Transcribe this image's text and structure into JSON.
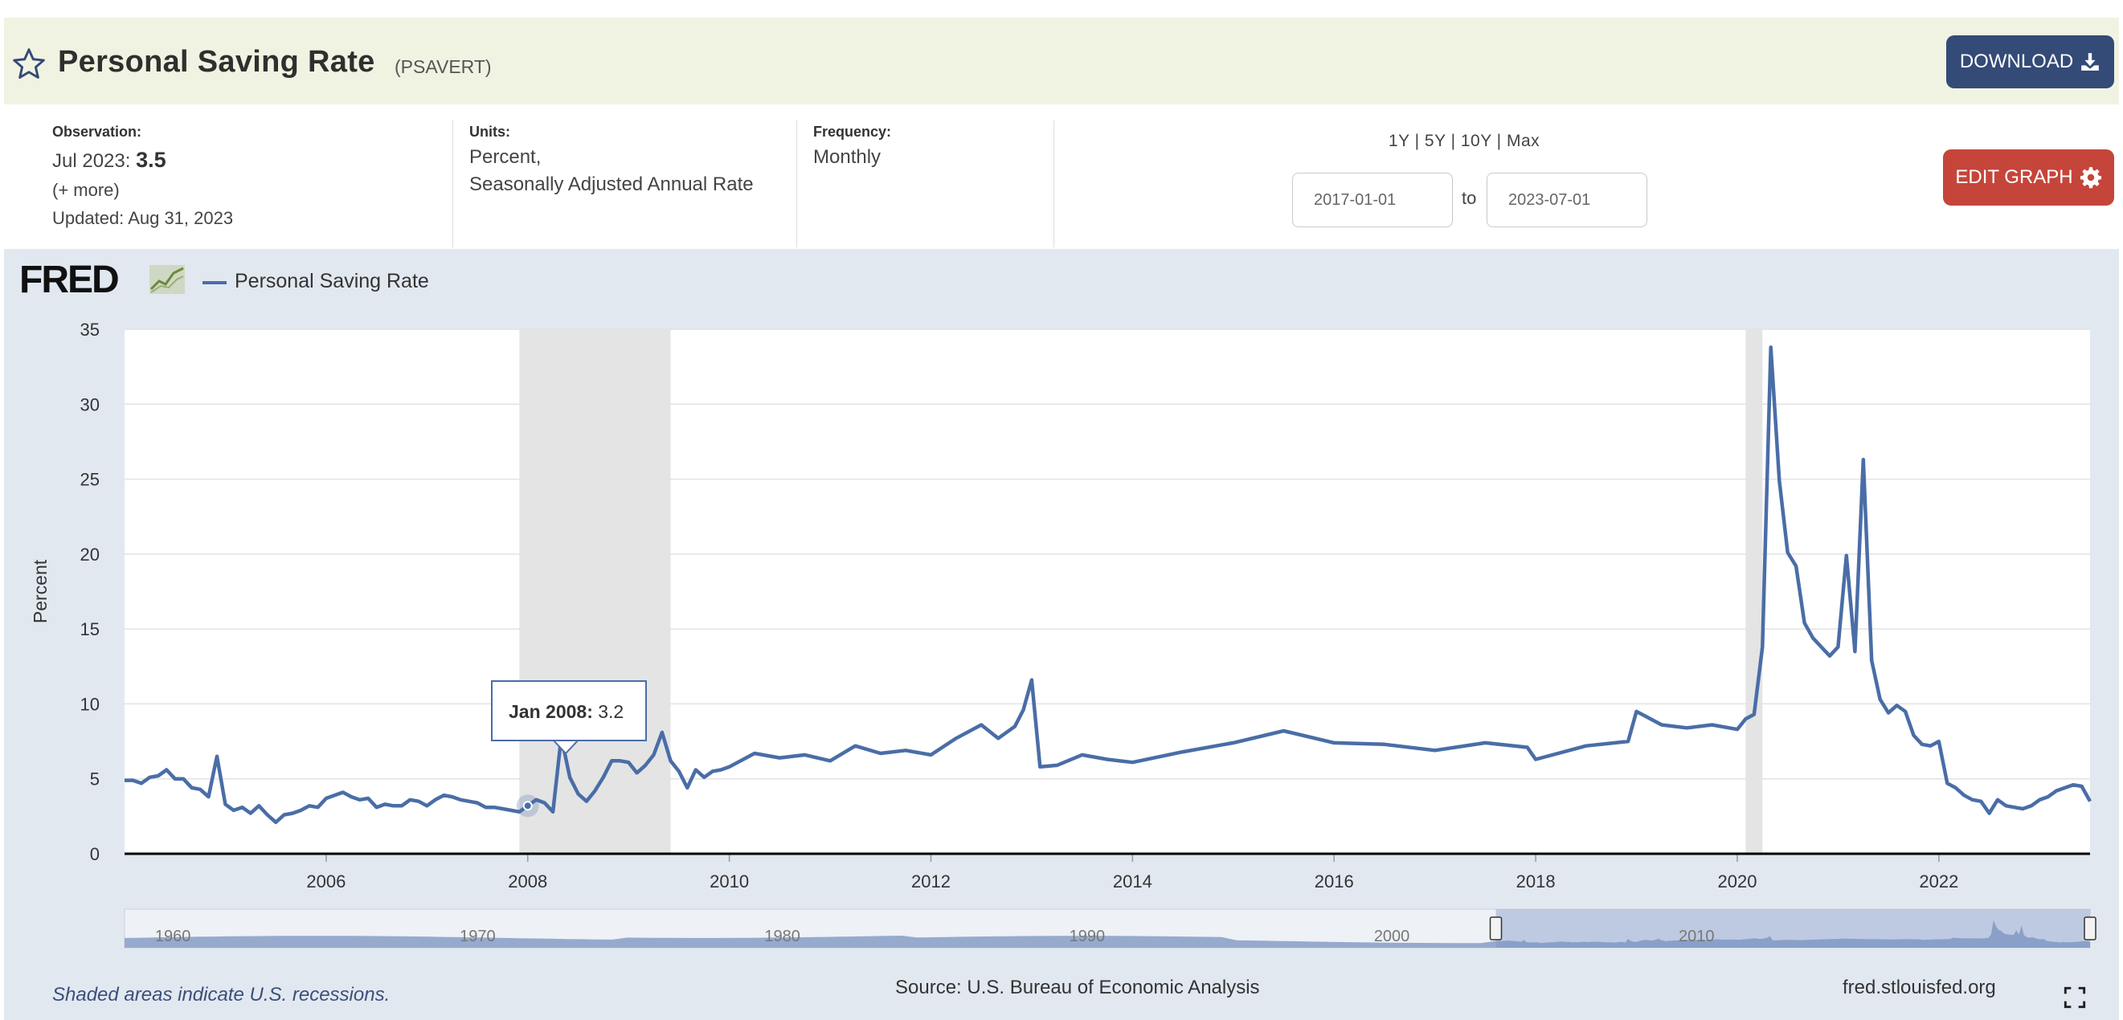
{
  "header": {
    "title": "Personal Saving Rate",
    "series_id": "(PSAVERT)",
    "download_label": "DOWNLOAD",
    "edit_graph_label": "EDIT GRAPH"
  },
  "info": {
    "observation_label": "Observation:",
    "observation_date": "Jul 2023:",
    "observation_value": "3.5",
    "more": "(+ more)",
    "updated": "Updated: Aug 31, 2023",
    "units_label": "Units:",
    "units_line1": "Percent,",
    "units_line2": "Seasonally Adjusted Annual Rate",
    "frequency_label": "Frequency:",
    "frequency_value": "Monthly",
    "ranges": "1Y | 5Y | 10Y | Max",
    "start_date": "2017-01-01",
    "to": "to",
    "end_date": "2023-07-01"
  },
  "legend": {
    "series_name": "Personal Saving Rate"
  },
  "tooltip": {
    "date": "Jan 2008:",
    "value": "3.2"
  },
  "footer": {
    "note": "Shaded areas indicate U.S. recessions.",
    "source": "Source: U.S. Bureau of Economic Analysis",
    "url": "fred.stlouisfed.org"
  },
  "navigator": {
    "labels": [
      "1960",
      "1970",
      "1980",
      "1990",
      "2000",
      "2010"
    ]
  },
  "colors": {
    "line": "#4a6da7",
    "recession": "#e4e4e4",
    "header_bg": "#f1f3e2",
    "download_bg": "#344a77",
    "edit_bg": "#c5453a"
  },
  "chart_data": {
    "type": "line",
    "ylabel": "Percent",
    "ylim": [
      0,
      35
    ],
    "yticks": [
      0,
      5,
      10,
      15,
      20,
      25,
      30,
      35
    ],
    "xticks": [
      2006,
      2008,
      2010,
      2012,
      2014,
      2016,
      2018,
      2020,
      2022
    ],
    "xlim": [
      2004.0,
      2023.5
    ],
    "recessions": [
      [
        2007.917,
        2009.417
      ],
      [
        2020.083,
        2020.25
      ]
    ],
    "series": [
      {
        "name": "Personal Saving Rate",
        "x": [
          2004.0,
          2004.083,
          2004.167,
          2004.25,
          2004.333,
          2004.417,
          2004.5,
          2004.583,
          2004.667,
          2004.75,
          2004.833,
          2004.917,
          2005.0,
          2005.083,
          2005.167,
          2005.25,
          2005.333,
          2005.417,
          2005.5,
          2005.583,
          2005.667,
          2005.75,
          2005.833,
          2005.917,
          2006.0,
          2006.083,
          2006.167,
          2006.25,
          2006.333,
          2006.417,
          2006.5,
          2006.583,
          2006.667,
          2006.75,
          2006.833,
          2006.917,
          2007.0,
          2007.083,
          2007.167,
          2007.25,
          2007.333,
          2007.417,
          2007.5,
          2007.583,
          2007.667,
          2007.75,
          2007.833,
          2007.917,
          2008.0,
          2008.083,
          2008.167,
          2008.25,
          2008.333,
          2008.417,
          2008.5,
          2008.583,
          2008.667,
          2008.75,
          2008.833,
          2008.917,
          2009.0,
          2009.083,
          2009.167,
          2009.25,
          2009.333,
          2009.417,
          2009.5,
          2009.583,
          2009.667,
          2009.75,
          2009.833,
          2009.917,
          2010.0,
          2010.25,
          2010.5,
          2010.75,
          2011.0,
          2011.25,
          2011.5,
          2011.75,
          2012.0,
          2012.25,
          2012.5,
          2012.667,
          2012.833,
          2012.917,
          2013.0,
          2013.083,
          2013.25,
          2013.5,
          2013.75,
          2014.0,
          2014.5,
          2015.0,
          2015.5,
          2016.0,
          2016.5,
          2017.0,
          2017.5,
          2017.917,
          2018.0,
          2018.5,
          2018.917,
          2019.0,
          2019.25,
          2019.5,
          2019.75,
          2020.0,
          2020.083,
          2020.167,
          2020.25,
          2020.333,
          2020.417,
          2020.5,
          2020.583,
          2020.667,
          2020.75,
          2020.833,
          2020.917,
          2021.0,
          2021.083,
          2021.167,
          2021.25,
          2021.333,
          2021.417,
          2021.5,
          2021.583,
          2021.667,
          2021.75,
          2021.833,
          2021.917,
          2022.0,
          2022.083,
          2022.167,
          2022.25,
          2022.333,
          2022.417,
          2022.5,
          2022.583,
          2022.667,
          2022.75,
          2022.833,
          2022.917,
          2023.0,
          2023.083,
          2023.167,
          2023.25,
          2023.333,
          2023.417,
          2023.5
        ],
        "values": [
          4.9,
          4.9,
          4.7,
          5.1,
          5.2,
          5.6,
          5.0,
          5.0,
          4.4,
          4.3,
          3.8,
          6.5,
          3.3,
          2.9,
          3.1,
          2.7,
          3.2,
          2.6,
          2.1,
          2.6,
          2.7,
          2.9,
          3.2,
          3.1,
          3.7,
          3.9,
          4.1,
          3.8,
          3.6,
          3.7,
          3.1,
          3.3,
          3.2,
          3.2,
          3.6,
          3.5,
          3.2,
          3.6,
          3.9,
          3.8,
          3.6,
          3.5,
          3.4,
          3.1,
          3.1,
          3.0,
          2.9,
          2.8,
          3.2,
          3.6,
          3.4,
          2.8,
          7.8,
          5.1,
          4.0,
          3.5,
          4.2,
          5.1,
          6.2,
          6.2,
          6.1,
          5.4,
          5.9,
          6.6,
          8.1,
          6.2,
          5.5,
          4.4,
          5.6,
          5.1,
          5.5,
          5.6,
          5.8,
          6.7,
          6.4,
          6.6,
          6.2,
          7.2,
          6.7,
          6.9,
          6.6,
          7.7,
          8.6,
          7.7,
          8.5,
          9.6,
          11.6,
          5.8,
          5.9,
          6.6,
          6.3,
          6.1,
          6.8,
          7.4,
          8.2,
          7.4,
          7.3,
          6.9,
          7.4,
          7.1,
          6.3,
          7.2,
          7.5,
          9.5,
          8.6,
          8.4,
          8.6,
          8.3,
          9.0,
          9.3,
          13.8,
          33.8,
          24.9,
          20.1,
          19.2,
          15.4,
          14.4,
          13.8,
          13.2,
          13.8,
          19.9,
          13.5,
          26.3,
          12.9,
          10.3,
          9.4,
          9.9,
          9.5,
          7.9,
          7.3,
          7.2,
          7.5,
          4.7,
          4.4,
          3.9,
          3.6,
          3.5,
          2.7,
          3.6,
          3.2,
          3.1,
          3.0,
          3.2,
          3.6,
          3.8,
          4.2,
          4.4,
          4.6,
          4.5,
          3.5
        ]
      }
    ]
  }
}
